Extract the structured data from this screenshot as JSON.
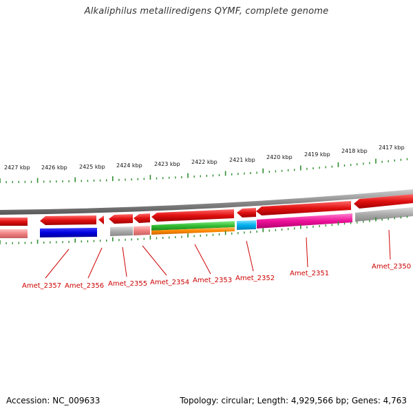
{
  "title": "Alkaliphilus metalliredigens QYMF, complete genome",
  "footer": {
    "accession": "Accession: NC_009633",
    "summary": "Topology: circular; Length: 4,929,566 bp; Genes: 4,763"
  },
  "colors": {
    "backbone": "#8a8a8a",
    "ticks": "#2e8b2e",
    "label_line": "#cc0000",
    "gene_red": "#e01010",
    "gene_pink": "#f08080",
    "gene_blue": "#0000dd",
    "gene_gray": "#aaaaaa",
    "gene_green": "#33bb33",
    "gene_orange": "#ff8800",
    "gene_cyan": "#00b0ee",
    "gene_magenta": "#ee1199"
  },
  "scale_labels": [
    "2427 kbp",
    "2426 kbp",
    "2425 kbp",
    "2424 kbp",
    "2423 kbp",
    "2422 kbp",
    "2421 kbp",
    "2420 kbp",
    "2419 kbp",
    "2418 kbp",
    "2417 kbp"
  ],
  "genes": [
    {
      "name": "Amet_2357",
      "label_color": "#cc0000"
    },
    {
      "name": "Amet_2356",
      "label_color": "#cc0000"
    },
    {
      "name": "Amet_2355",
      "label_color": "#cc0000"
    },
    {
      "name": "Amet_2354",
      "label_color": "#cc0000"
    },
    {
      "name": "Amet_2353",
      "label_color": "#cc0000"
    },
    {
      "name": "Amet_2352",
      "label_color": "#cc0000"
    },
    {
      "name": "Amet_2351",
      "label_color": "#cc0000"
    },
    {
      "name": "Amet_2350",
      "label_color": "#cc0000"
    }
  ]
}
